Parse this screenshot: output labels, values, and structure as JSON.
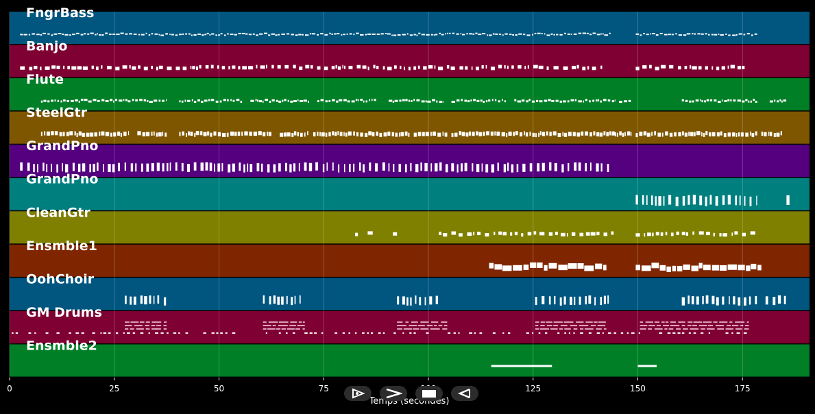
{
  "xlabel": "Temps (secondes)",
  "colors": {
    "background": "#000000",
    "grid": "#ffffff",
    "note": "#ffffff"
  },
  "controls": {
    "play_icon": "play-icon",
    "forward_icon": "forward-icon",
    "stop_icon": "stop-icon",
    "rewind_icon": "rewind-icon"
  },
  "chart_data": {
    "type": "piano-roll",
    "xlim": [
      0,
      191
    ],
    "xticks": [
      0,
      25,
      50,
      75,
      100,
      125,
      150,
      175
    ],
    "grid": true,
    "tracks": [
      {
        "name": "FngrBass",
        "color": "#00567f",
        "segments": [
          [
            2.5,
            143.5
          ],
          [
            149.5,
            178.5
          ]
        ],
        "density": "dense",
        "noteHeight": 2
      },
      {
        "name": "Banjo",
        "color": "#7f0032",
        "segments": [
          [
            2.5,
            141.5
          ],
          [
            149.5,
            175.5
          ]
        ],
        "density": "medium",
        "noteHeight": 5
      },
      {
        "name": "Flute",
        "color": "#007f26",
        "segments": [
          [
            7.5,
            37.5
          ],
          [
            40.5,
            55.5
          ],
          [
            57.5,
            71.5
          ],
          [
            73.5,
            87.5
          ],
          [
            90.5,
            103.5
          ],
          [
            105.5,
            118.5
          ],
          [
            120.5,
            144.5
          ],
          [
            145.5,
            148.5
          ],
          [
            160.5,
            178.5
          ],
          [
            181.5,
            185.5
          ]
        ],
        "density": "dense",
        "noteHeight": 3
      },
      {
        "name": "SteelGtr",
        "color": "#7f5600",
        "segments": [
          [
            7.5,
            28.5
          ],
          [
            30.5,
            37.5
          ],
          [
            40.5,
            62.5
          ],
          [
            64.5,
            71.5
          ],
          [
            72.5,
            95.5
          ],
          [
            96.5,
            104.5
          ],
          [
            105.5,
            144.5
          ],
          [
            144.5,
            148.5
          ],
          [
            149.5,
            178.5
          ],
          [
            179.5,
            184.5
          ]
        ],
        "density": "dense",
        "noteHeight": 6
      },
      {
        "name": "GrandPno",
        "color": "#54007f",
        "segments": [
          [
            2.5,
            143.5
          ]
        ],
        "density": "sparse",
        "noteHeight": 12
      },
      {
        "name": "GrandPno",
        "color": "#007f7f",
        "segments": [
          [
            149.5,
            178.5
          ],
          [
            185.5,
            186.5
          ]
        ],
        "density": "sparse",
        "noteHeight": 14
      },
      {
        "name": "CleanGtr",
        "color": "#7f7f00",
        "segments": [
          [
            82.5,
            83.5
          ],
          [
            85.5,
            87.5
          ],
          [
            91.5,
            92.5
          ],
          [
            102.5,
            144.5
          ],
          [
            149.5,
            178.5
          ]
        ],
        "density": "medium",
        "noteHeight": 5
      },
      {
        "name": "Ensmble1",
        "color": "#7f2600",
        "segments": [
          [
            114.5,
            142.5
          ],
          [
            149.5,
            179.5
          ]
        ],
        "density": "thick",
        "noteHeight": 8
      },
      {
        "name": "OohChoir",
        "color": "#00567f",
        "segments": [
          [
            27.5,
            37.5
          ],
          [
            60.5,
            69.5
          ],
          [
            92.5,
            102.5
          ],
          [
            125.5,
            143.5
          ],
          [
            160.5,
            178.5
          ],
          [
            180.5,
            185.5
          ]
        ],
        "density": "sparse",
        "noteHeight": 12
      },
      {
        "name": "GM Drums",
        "color": "#7f0032",
        "segments": [
          [
            0.5,
            176.5
          ]
        ],
        "density": "drums",
        "noteHeight": 20
      },
      {
        "name": "Ensmble2",
        "color": "#007f26",
        "segments": [
          [
            115.0,
            129.5
          ],
          [
            150.0,
            154.5
          ]
        ],
        "density": "line",
        "noteHeight": 3
      }
    ]
  }
}
